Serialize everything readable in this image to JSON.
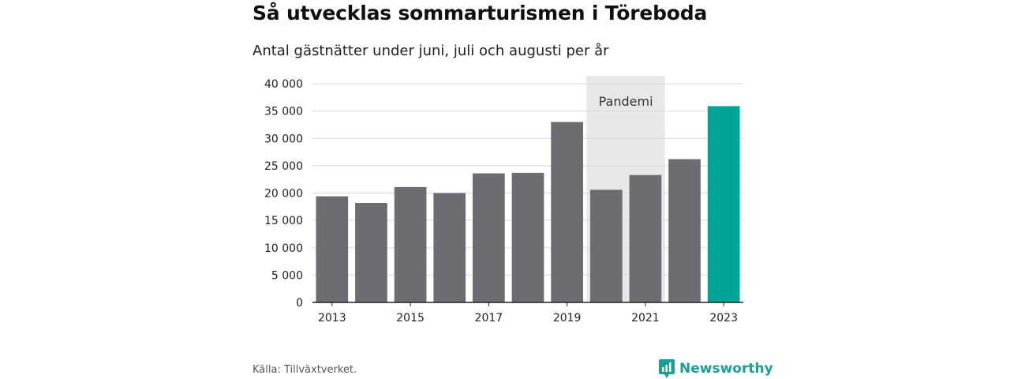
{
  "title": "Så utvecklas sommarturismen i Töreboda",
  "subtitle": "Antal gästnätter under juni, juli och augusti per år",
  "source": "Källa: Tillväxtverket.",
  "brand": {
    "name": "Newsworthy",
    "icon": "newsworthy-logo-icon",
    "color": "#1b9e95"
  },
  "colors": {
    "bar": "#6d6c72",
    "highlight": "#00a497",
    "band": "#e8e8e8"
  },
  "chart_data": {
    "type": "bar",
    "categories": [
      "2013",
      "2014",
      "2015",
      "2016",
      "2017",
      "2018",
      "2019",
      "2020",
      "2021",
      "2022",
      "2023"
    ],
    "values": [
      19400,
      18200,
      21100,
      20000,
      23600,
      23700,
      33000,
      20600,
      23300,
      26200,
      35900
    ],
    "highlight_index": 10,
    "x_tick_labels": [
      "2013",
      "",
      "2015",
      "",
      "2017",
      "",
      "2019",
      "",
      "2021",
      "",
      "2023"
    ],
    "ylim": [
      0,
      40000
    ],
    "y_ticks": [
      0,
      5000,
      10000,
      15000,
      20000,
      25000,
      30000,
      35000,
      40000
    ],
    "y_tick_labels": [
      "0",
      "5 000",
      "10 000",
      "15 000",
      "20 000",
      "25 000",
      "30 000",
      "35 000",
      "40 000"
    ],
    "grid": true,
    "annotation": {
      "label": "Pandemi",
      "from": "2020",
      "to": "2021"
    }
  }
}
